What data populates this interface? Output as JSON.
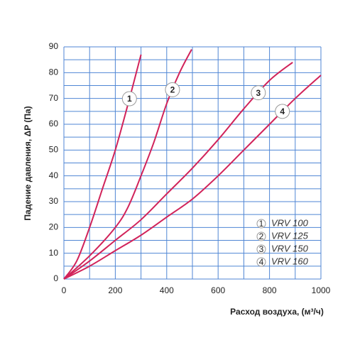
{
  "chart_data": {
    "type": "line",
    "xlabel": "Расход воздуха, (м³/ч)",
    "ylabel": "Падение давления, ΔP (Па)",
    "xlim": [
      0,
      1000
    ],
    "ylim": [
      0,
      90
    ],
    "xticks": [
      0,
      200,
      400,
      600,
      800,
      1000
    ],
    "yticks": [
      0,
      10,
      20,
      30,
      40,
      50,
      60,
      70,
      80,
      90
    ],
    "grid": true,
    "series": [
      {
        "name": "VRV 100",
        "marker": "1",
        "color": "#d1235a",
        "x": [
          0,
          50,
          100,
          150,
          200,
          250,
          300
        ],
        "values": [
          0,
          7,
          20,
          35,
          50,
          68,
          87
        ]
      },
      {
        "name": "VRV 125",
        "marker": "2",
        "color": "#d1235a",
        "x": [
          0,
          100,
          200,
          250,
          300,
          350,
          400,
          450,
          497
        ],
        "values": [
          0,
          9,
          20,
          28,
          40,
          53,
          68,
          80,
          89
        ]
      },
      {
        "name": "VRV 150",
        "marker": "3",
        "color": "#d1235a",
        "x": [
          0,
          100,
          200,
          300,
          400,
          500,
          600,
          700,
          800,
          890
        ],
        "values": [
          0,
          7,
          15,
          23,
          33,
          43,
          54,
          66,
          77,
          84
        ]
      },
      {
        "name": "VRV 160",
        "marker": "4",
        "color": "#d1235a",
        "x": [
          0,
          100,
          200,
          300,
          400,
          500,
          600,
          700,
          800,
          900,
          1000
        ],
        "values": [
          0,
          5,
          11,
          17,
          24,
          31,
          40,
          50,
          60,
          70,
          79
        ]
      }
    ]
  }
}
